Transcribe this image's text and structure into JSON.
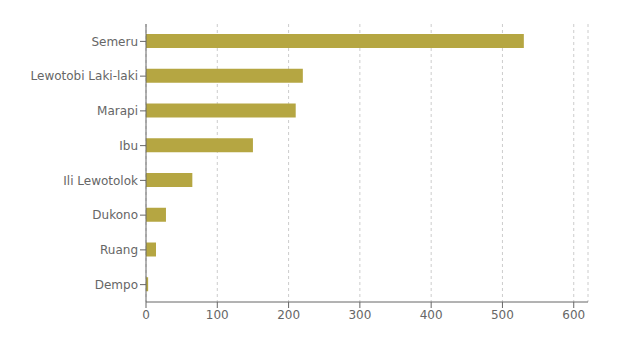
{
  "chart_data": {
    "type": "bar",
    "orientation": "horizontal",
    "categories": [
      "Dempo",
      "Ruang",
      "Dukono",
      "Ili Lewotolok",
      "Ibu",
      "Marapi",
      "Lewotobi Laki-laki",
      "Semeru"
    ],
    "values": [
      3,
      14,
      28,
      65,
      150,
      210,
      220,
      530
    ],
    "color": "#b5a642",
    "xlim": [
      0,
      620
    ],
    "xticks": [
      0,
      100,
      200,
      300,
      400,
      500,
      600
    ],
    "grid": true
  }
}
